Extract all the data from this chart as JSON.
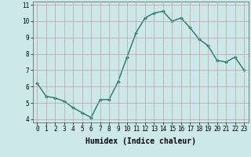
{
  "x": [
    0,
    1,
    2,
    3,
    4,
    5,
    6,
    7,
    8,
    9,
    10,
    11,
    12,
    13,
    14,
    15,
    16,
    17,
    18,
    19,
    20,
    21,
    22,
    23
  ],
  "y": [
    6.2,
    5.4,
    5.3,
    5.1,
    4.7,
    4.4,
    4.1,
    5.2,
    5.2,
    6.3,
    7.8,
    9.3,
    10.2,
    10.5,
    10.6,
    10.0,
    10.2,
    9.6,
    8.9,
    8.5,
    7.6,
    7.5,
    7.8,
    7.0
  ],
  "line_color": "#1a7a6e",
  "marker": "D",
  "marker_size": 2.0,
  "bg_color": "#cce8e8",
  "grid_color": "#c0a0a0",
  "xlabel": "Humidex (Indice chaleur)",
  "xlim": [
    -0.5,
    23.5
  ],
  "ylim": [
    3.8,
    11.2
  ],
  "yticks": [
    4,
    5,
    6,
    7,
    8,
    9,
    10,
    11
  ],
  "xticks": [
    0,
    1,
    2,
    3,
    4,
    5,
    6,
    7,
    8,
    9,
    10,
    11,
    12,
    13,
    14,
    15,
    16,
    17,
    18,
    19,
    20,
    21,
    22,
    23
  ],
  "xlabel_fontsize": 7.0,
  "tick_fontsize": 5.5,
  "linewidth": 1.0
}
